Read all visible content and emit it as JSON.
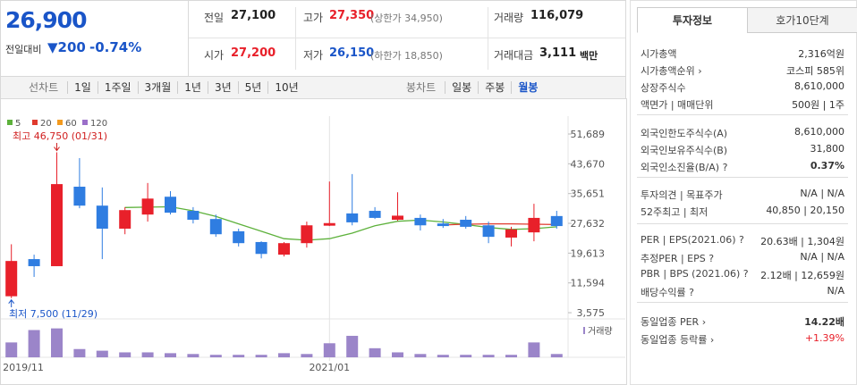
{
  "quote": {
    "price": "26,900",
    "change_label": "전일대비",
    "change": "▼200",
    "change_rate": "-0.74%",
    "items": [
      {
        "label": "전일",
        "value": "27,100"
      },
      {
        "label": "고가",
        "value": "27,350",
        "note": "(상한가 34,950)"
      },
      {
        "label": "거래량",
        "value": "116,079"
      },
      {
        "label": "시가",
        "value": "27,200"
      },
      {
        "label": "저가",
        "value": "26,150",
        "note": "(하한가 18,850)"
      },
      {
        "label": "거래대금",
        "value": "3,111",
        "note": "백만"
      }
    ]
  },
  "toolbar": {
    "line_chart": "선차트",
    "periods": [
      "1일",
      "1주일",
      "3개월",
      "1년",
      "3년",
      "5년",
      "10년"
    ],
    "candle_chart": "봉차트",
    "candle_periods": [
      "일봉",
      "주봉",
      "월봉"
    ]
  },
  "chart_data": {
    "type": "candlestick",
    "categories": [
      "2019/11",
      null,
      null,
      null,
      null,
      null,
      null,
      null,
      null,
      null,
      null,
      null,
      null,
      null,
      "2021/01",
      null,
      null,
      null,
      null,
      null,
      null,
      null,
      null,
      null,
      null
    ],
    "open": [
      8000,
      18000,
      16100,
      37500,
      32400,
      26200,
      30000,
      34800,
      31000,
      28800,
      25500,
      22600,
      19200,
      22300,
      27000,
      30300,
      31000,
      28600,
      29100,
      27600,
      28600,
      27100,
      23800,
      25200,
      29600
    ],
    "high": [
      22000,
      19200,
      46750,
      45200,
      37300,
      32000,
      38500,
      36300,
      32000,
      30000,
      26200,
      22800,
      22600,
      28100,
      38900,
      40900,
      32000,
      36000,
      30000,
      28800,
      29600,
      28100,
      26700,
      32900,
      31000
    ],
    "low": [
      7500,
      13200,
      16100,
      31700,
      18000,
      24700,
      28100,
      30000,
      27600,
      24000,
      21400,
      18200,
      18700,
      21100,
      26900,
      27100,
      28800,
      28300,
      25700,
      26400,
      26200,
      22300,
      21400,
      22800,
      26200
    ],
    "close": [
      17500,
      16100,
      38200,
      32400,
      26200,
      31200,
      34300,
      30500,
      28600,
      24700,
      22300,
      19400,
      22300,
      27100,
      27700,
      27900,
      29100,
      29700,
      27100,
      26900,
      26700,
      24000,
      26000,
      29100,
      26900
    ],
    "up_color": "#e8202a",
    "down_color": "#2f7de1",
    "moving_averages": [
      {
        "name": "5",
        "color": "#5db13b",
        "values": [
          null,
          null,
          null,
          null,
          null,
          31900,
          32000,
          32100,
          31000,
          29500,
          27500,
          25500,
          23500,
          23100,
          23500,
          25000,
          27000,
          28200,
          28500,
          28000,
          27300,
          26500,
          26000,
          26200,
          26700
        ]
      },
      {
        "name": "20",
        "color": "#e03a2e",
        "values": [
          null,
          null,
          null,
          null,
          null,
          null,
          null,
          null,
          null,
          null,
          null,
          null,
          null,
          null,
          null,
          null,
          null,
          null,
          null,
          27200,
          27400,
          27500,
          27500,
          27400,
          27300
        ]
      },
      {
        "name": "60",
        "color": "#f39a1e",
        "values": [
          null,
          null,
          null,
          null,
          null,
          null,
          null,
          null,
          null,
          null,
          null,
          null,
          null,
          null,
          null,
          null,
          null,
          null,
          null,
          null,
          null,
          null,
          null,
          null,
          null
        ]
      },
      {
        "name": "120",
        "color": "#9b6fc9",
        "values": [
          null,
          null,
          null,
          null,
          null,
          null,
          null,
          null,
          null,
          null,
          null,
          null,
          null,
          null,
          null,
          null,
          null,
          null,
          null,
          null,
          null,
          null,
          null,
          null,
          null
        ]
      }
    ],
    "ylim": [
      1900,
      54100
    ],
    "yticks": [
      {
        "value": 51689,
        "label": "51,689"
      },
      {
        "value": 43670,
        "label": "43,670"
      },
      {
        "value": 35651,
        "label": "35,651"
      },
      {
        "value": 27632,
        "label": "27,632"
      },
      {
        "value": 19613,
        "label": "19,613"
      },
      {
        "value": 11594,
        "label": "11,594"
      },
      {
        "value": 3575,
        "label": "3,575"
      }
    ],
    "annotations": [
      "최고 46,750 (01/31)",
      "최저 7,500 (11/29)"
    ],
    "volume": {
      "name": "거래량",
      "color": "#9b85c9",
      "ylim": [
        0,
        40
      ],
      "values": [
        18,
        33,
        35,
        10,
        8,
        6,
        6,
        5,
        4,
        3,
        3,
        3,
        5,
        4,
        17,
        26,
        11,
        6,
        4,
        3,
        3,
        3,
        3,
        18,
        4
      ]
    }
  },
  "info_panel": {
    "tabs": [
      "투자정보",
      "호가10단계"
    ],
    "rows": [
      {
        "label": "시가총액",
        "value": "2,316억원"
      },
      {
        "label": "시가총액순위 ›",
        "value": "코스피 585위"
      },
      {
        "label": "상장주식수",
        "value": "8,610,000"
      },
      {
        "label": "액면가 | 매매단위",
        "value": "500원 | 1주"
      },
      {
        "label": "외국인한도주식수(A)",
        "value": "8,610,000"
      },
      {
        "label": "외국인보유주식수(B)",
        "value": "31,800"
      },
      {
        "label": "외국인소진율(B/A) ?",
        "value": "0.37%"
      },
      {
        "label": "투자의견 | 목표주가",
        "value": "N/A | N/A"
      },
      {
        "label": "52주최고 | 최저",
        "value": "40,850 | 20,150"
      },
      {
        "label": "PER | EPS(2021.06) ?",
        "value": "20.63배 | 1,304원"
      },
      {
        "label": "추정PER | EPS ?",
        "value": "N/A | N/A"
      },
      {
        "label": "PBR | BPS (2021.06) ?",
        "value": "2.12배 | 12,659원"
      },
      {
        "label": "배당수익률 ?",
        "value": "N/A"
      },
      {
        "label": "동일업종 PER ›",
        "value": "14.22배"
      },
      {
        "label": "동일업종 등락률 ›",
        "value": "+1.39%"
      }
    ]
  }
}
